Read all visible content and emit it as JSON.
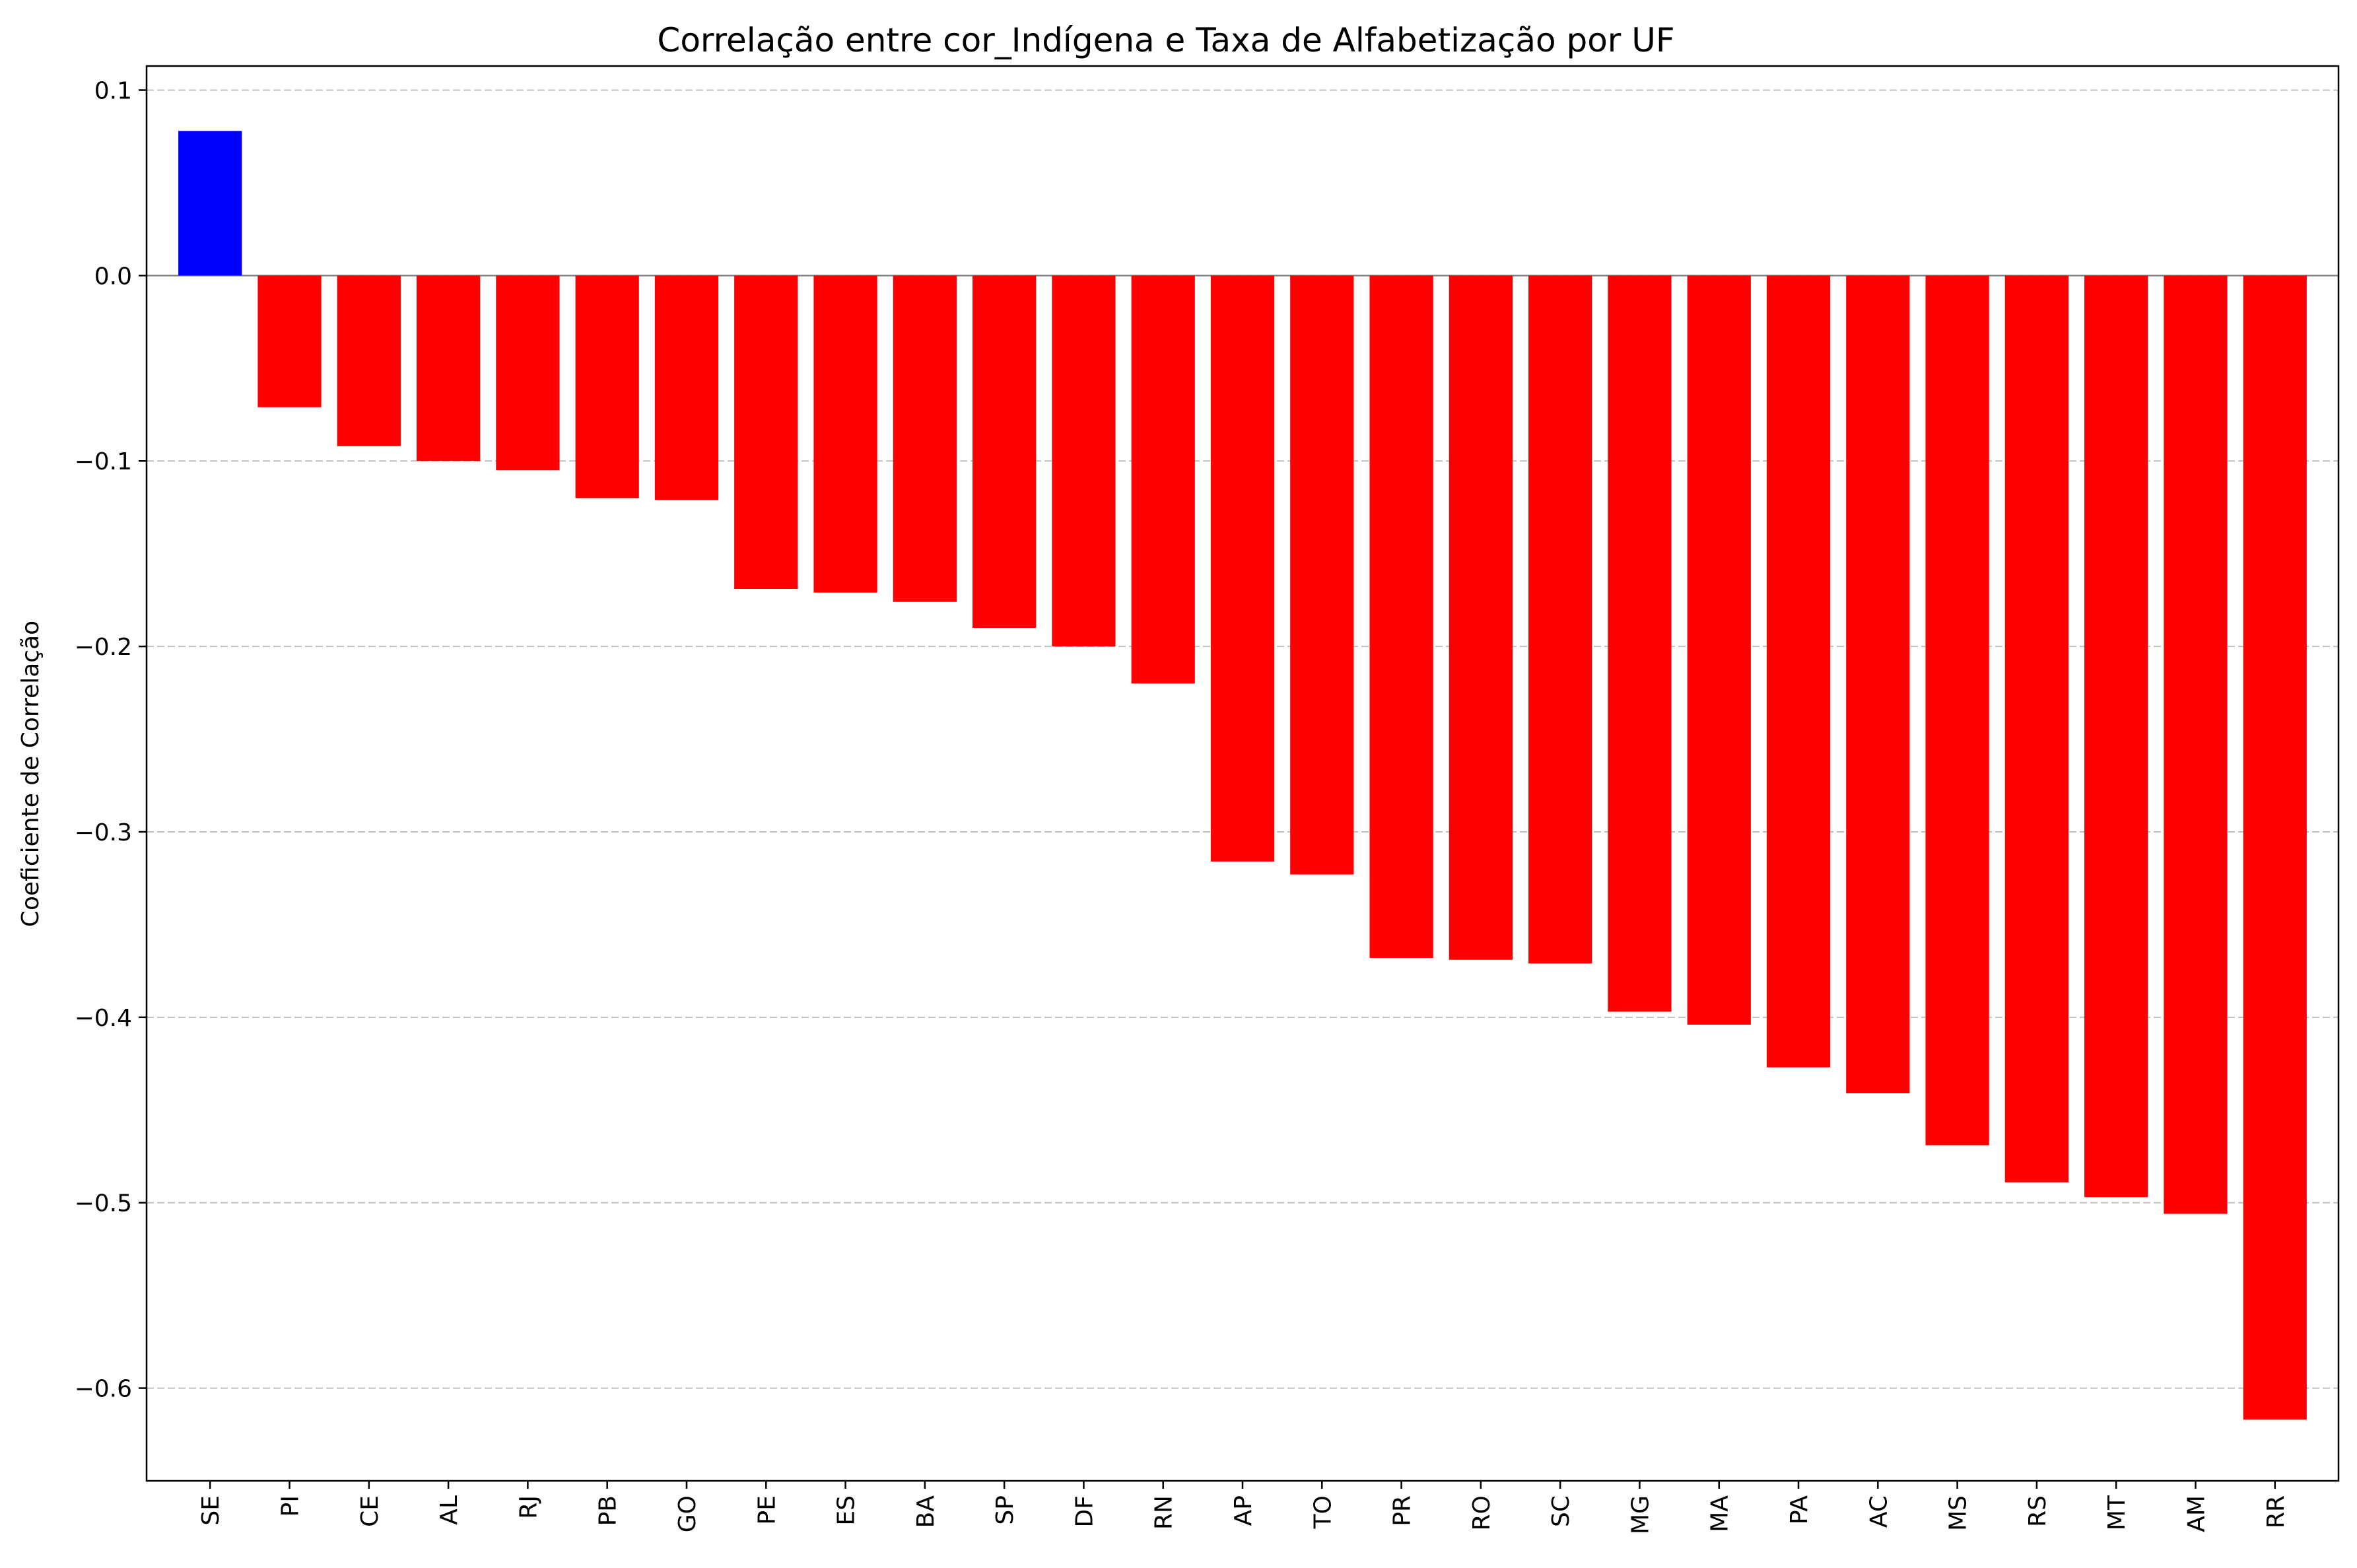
{
  "chart_data": {
    "type": "bar",
    "title": "Correlação entre cor_Indígena e Taxa de Alfabetização por UF",
    "xlabel": "",
    "ylabel": "Coeficiente de Correlação",
    "categories": [
      "SE",
      "PI",
      "CE",
      "AL",
      "RJ",
      "PB",
      "GO",
      "PE",
      "ES",
      "BA",
      "SP",
      "DF",
      "RN",
      "AP",
      "TO",
      "PR",
      "RO",
      "SC",
      "MG",
      "MA",
      "PA",
      "AC",
      "MS",
      "RS",
      "MT",
      "AM",
      "RR"
    ],
    "values": [
      0.078,
      -0.071,
      -0.092,
      -0.1,
      -0.105,
      -0.12,
      -0.121,
      -0.169,
      -0.171,
      -0.176,
      -0.19,
      -0.2,
      -0.22,
      -0.316,
      -0.323,
      -0.368,
      -0.369,
      -0.371,
      -0.397,
      -0.404,
      -0.427,
      -0.441,
      -0.469,
      -0.489,
      -0.497,
      -0.506,
      -0.617
    ],
    "ylim": [
      -0.65,
      0.113
    ],
    "yticks": [
      "0.1",
      "0.0",
      "−0.1",
      "−0.2",
      "−0.3",
      "−0.4",
      "−0.5",
      "−0.6"
    ],
    "ytick_values": [
      0.1,
      0.0,
      -0.1,
      -0.2,
      -0.3,
      -0.4,
      -0.5,
      -0.6
    ],
    "grid": "y",
    "positive_color": "#0000ff",
    "negative_color": "#ff0000",
    "zero_line_color": "#808080",
    "grid_color": "#c0c0c0"
  }
}
